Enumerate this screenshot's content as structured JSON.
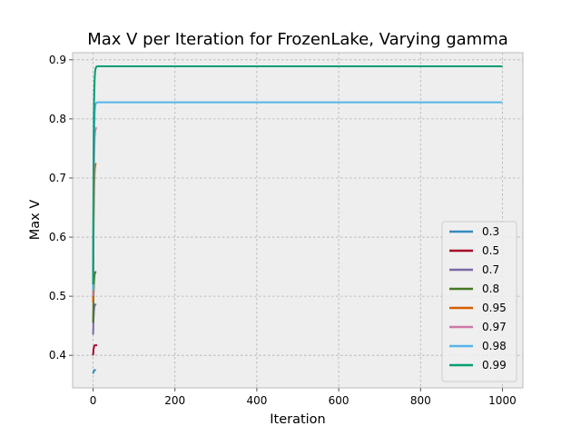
{
  "chart_data": {
    "type": "line",
    "title": "Max V per Iteration for FrozenLake, Varying gamma",
    "xlabel": "Iteration",
    "ylabel": "Max V",
    "xlim": [
      -50,
      1050
    ],
    "ylim": [
      0.345,
      0.912
    ],
    "x_ticks": [
      0,
      200,
      400,
      600,
      800,
      1000
    ],
    "y_ticks": [
      0.4,
      0.5,
      0.6,
      0.7,
      0.8,
      0.9
    ],
    "grid": true,
    "background": "#eeeeee",
    "legend_position": "lower-right",
    "series": [
      {
        "name": "0.3",
        "color": "#348abd",
        "x": [
          0,
          1,
          2,
          3,
          4,
          5,
          6,
          7
        ],
        "y": [
          0.369,
          0.372,
          0.374,
          0.375,
          0.375,
          0.375,
          0.375,
          0.375
        ]
      },
      {
        "name": "0.5",
        "color": "#a60628",
        "x": [
          0,
          1,
          2,
          3,
          4,
          5,
          6,
          7,
          8,
          9,
          10
        ],
        "y": [
          0.4,
          0.41,
          0.414,
          0.416,
          0.417,
          0.417,
          0.417,
          0.417,
          0.417,
          0.417,
          0.417
        ]
      },
      {
        "name": "0.7",
        "color": "#7a68a6",
        "x": [
          0,
          1,
          2,
          3,
          4,
          5,
          6,
          7,
          8
        ],
        "y": [
          0.435,
          0.46,
          0.475,
          0.482,
          0.485,
          0.486,
          0.486,
          0.486,
          0.486
        ]
      },
      {
        "name": "0.8",
        "color": "#467821",
        "x": [
          0,
          1,
          2,
          3,
          4,
          5,
          6,
          7,
          8
        ],
        "y": [
          0.455,
          0.5,
          0.52,
          0.532,
          0.538,
          0.54,
          0.541,
          0.541,
          0.541
        ]
      },
      {
        "name": "0.95",
        "color": "#d55e00",
        "x": [
          0,
          1,
          2,
          3,
          4,
          5,
          6,
          7,
          8
        ],
        "y": [
          0.49,
          0.6,
          0.66,
          0.695,
          0.712,
          0.72,
          0.723,
          0.724,
          0.724
        ]
      },
      {
        "name": "0.97",
        "color": "#cc79a7",
        "x": [
          0,
          1,
          2,
          3,
          4,
          5,
          6,
          7,
          8,
          9
        ],
        "y": [
          0.5,
          0.64,
          0.71,
          0.75,
          0.77,
          0.778,
          0.782,
          0.784,
          0.785,
          0.785
        ]
      },
      {
        "name": "0.98",
        "color": "#56b4e9",
        "x": [
          0,
          1,
          2,
          3,
          4,
          5,
          6,
          8,
          10,
          1000
        ],
        "y": [
          0.51,
          0.67,
          0.75,
          0.79,
          0.81,
          0.82,
          0.825,
          0.827,
          0.828,
          0.828
        ]
      },
      {
        "name": "0.99",
        "color": "#009e73",
        "x": [
          0,
          1,
          2,
          3,
          4,
          5,
          6,
          8,
          10,
          1000
        ],
        "y": [
          0.52,
          0.72,
          0.81,
          0.85,
          0.87,
          0.88,
          0.885,
          0.888,
          0.889,
          0.889
        ]
      }
    ]
  }
}
